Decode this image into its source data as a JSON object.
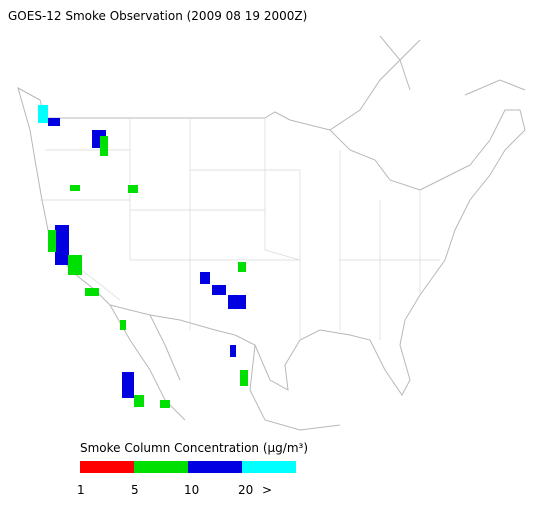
{
  "title": "GOES-12 Smoke Observation (2009 08 19  2000Z)",
  "legend": {
    "title": "Smoke Column Concentration (μg/m³)",
    "colors": [
      "#ff0000",
      "#00e000",
      "#0000e0",
      "#00ffff"
    ],
    "tick_labels": [
      "1",
      "5",
      "10",
      "20",
      ">"
    ]
  }
}
